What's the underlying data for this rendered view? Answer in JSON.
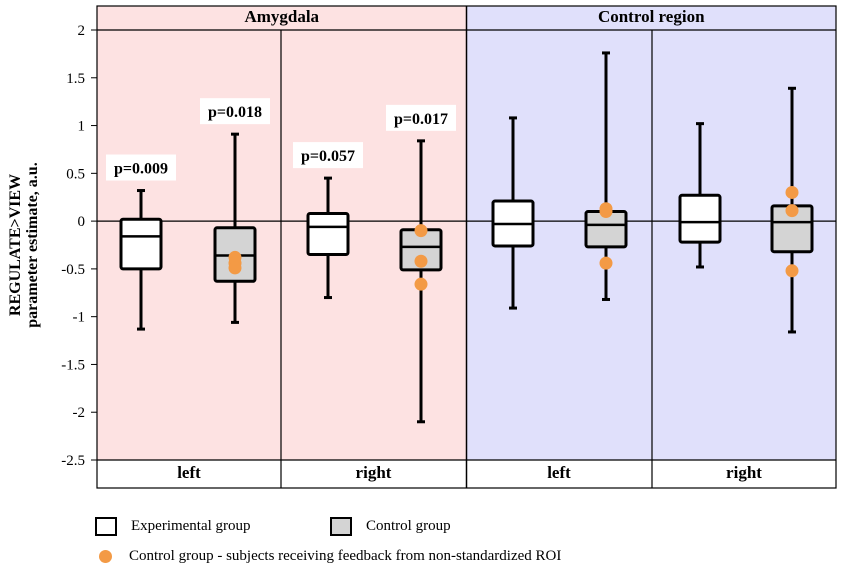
{
  "colors": {
    "amygdala_bg": "#fde2e2",
    "control_bg": "#e0e0fb",
    "experimental_fill": "#ffffff",
    "control_fill": "#d4d4d4",
    "outlier_dot": "#f39a45"
  },
  "chart_data": {
    "type": "box",
    "ylabel_line1": "REGULATE>VIEW",
    "ylabel_line2": "parameter estimate, a.u.",
    "ylim": [
      -2.5,
      2
    ],
    "yticks": [
      2,
      1.5,
      1,
      0.5,
      0,
      -0.5,
      -1,
      -1.5,
      -2,
      -2.5
    ],
    "ytick_labels": [
      "2",
      "1.5",
      "1",
      "0.5",
      "0",
      "-0.5",
      "-1",
      "-1.5",
      "-2",
      "-2.5"
    ],
    "regions": [
      {
        "name": "Amygdala",
        "sides": [
          "left",
          "right"
        ]
      },
      {
        "name": "Control region",
        "sides": [
          "left",
          "right"
        ]
      }
    ],
    "boxes": [
      {
        "region": "Amygdala",
        "side": "left",
        "group": "Experimental group",
        "min": -1.13,
        "q1": -0.5,
        "median": -0.16,
        "q3": 0.02,
        "max": 0.32
      },
      {
        "region": "Amygdala",
        "side": "left",
        "group": "Control group",
        "min": -1.06,
        "q1": -0.63,
        "median": -0.36,
        "q3": -0.07,
        "max": 0.91,
        "dots": [
          -0.38,
          -0.44,
          -0.49
        ],
        "pvalue": "p=0.018"
      },
      {
        "region": "Amygdala",
        "side": "right",
        "group": "Experimental group",
        "min": -0.8,
        "q1": -0.35,
        "median": -0.06,
        "q3": 0.08,
        "max": 0.45
      },
      {
        "region": "Amygdala",
        "side": "right",
        "group": "Control group",
        "min": -2.1,
        "q1": -0.51,
        "median": -0.27,
        "q3": -0.09,
        "max": 0.84,
        "dots": [
          -0.1,
          -0.42,
          -0.66
        ],
        "pvalue": "p=0.017"
      },
      {
        "region": "Control region",
        "side": "left",
        "group": "Experimental group",
        "min": -0.91,
        "q1": -0.26,
        "median": -0.03,
        "q3": 0.21,
        "max": 1.08
      },
      {
        "region": "Control region",
        "side": "left",
        "group": "Control group",
        "min": -0.82,
        "q1": -0.27,
        "median": -0.04,
        "q3": 0.1,
        "max": 1.76,
        "dots": [
          0.13,
          0.1,
          -0.44
        ]
      },
      {
        "region": "Control region",
        "side": "right",
        "group": "Experimental group",
        "min": -0.48,
        "q1": -0.22,
        "median": -0.01,
        "q3": 0.27,
        "max": 1.02
      },
      {
        "region": "Control region",
        "side": "right",
        "group": "Control group",
        "min": -1.16,
        "q1": -0.32,
        "median": -0.01,
        "q3": 0.16,
        "max": 1.39,
        "dots": [
          0.3,
          0.11,
          -0.52
        ]
      }
    ],
    "pvalues": [
      {
        "label": "p=0.009",
        "box": 0
      },
      {
        "label": "p=0.018",
        "box": 1
      },
      {
        "label": "p=0.057",
        "box": 2
      },
      {
        "label": "p=0.017",
        "box": 3
      }
    ],
    "legend": {
      "experimental": "Experimental group",
      "control": "Control group",
      "dots": "Control group - subjects receiving feedback from non-standardized ROI"
    }
  }
}
